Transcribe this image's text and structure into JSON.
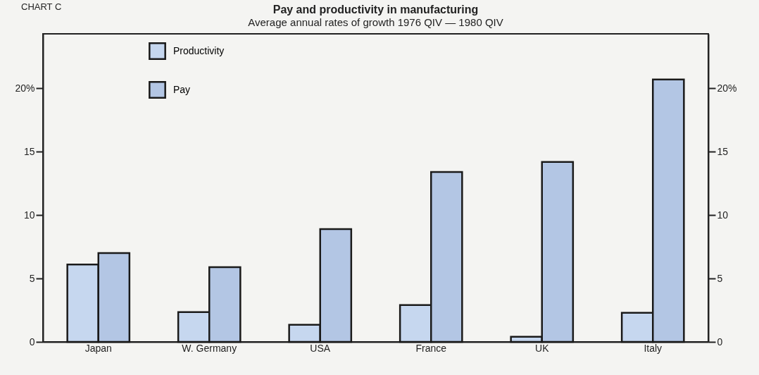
{
  "chart_data": {
    "type": "bar",
    "title": "Pay and productivity in manufacturing",
    "subtitle": "Average annual rates of growth 1976 QIV — 1980 QIV",
    "annotations": [
      "CHART C"
    ],
    "categories": [
      "Japan",
      "W. Germany",
      "USA",
      "France",
      "UK",
      "Italy"
    ],
    "series": [
      {
        "name": "Productivity",
        "color": "#c6d7ef",
        "values": [
          6.1,
          2.35,
          1.35,
          2.9,
          0.4,
          2.3
        ]
      },
      {
        "name": "Pay",
        "color": "#b3c6e4",
        "values": [
          7.0,
          5.9,
          8.9,
          13.4,
          14.2,
          20.7
        ]
      }
    ],
    "ylim": [
      0,
      24.3
    ],
    "yticks": [
      0,
      5,
      10,
      15,
      {
        "value": 20,
        "label": "20%"
      }
    ],
    "y2lim": [
      0,
      24.3
    ],
    "y2ticks": [
      0,
      5,
      10,
      15,
      {
        "value": 20,
        "label": "20%"
      }
    ],
    "grid": false,
    "legend": "top left"
  }
}
